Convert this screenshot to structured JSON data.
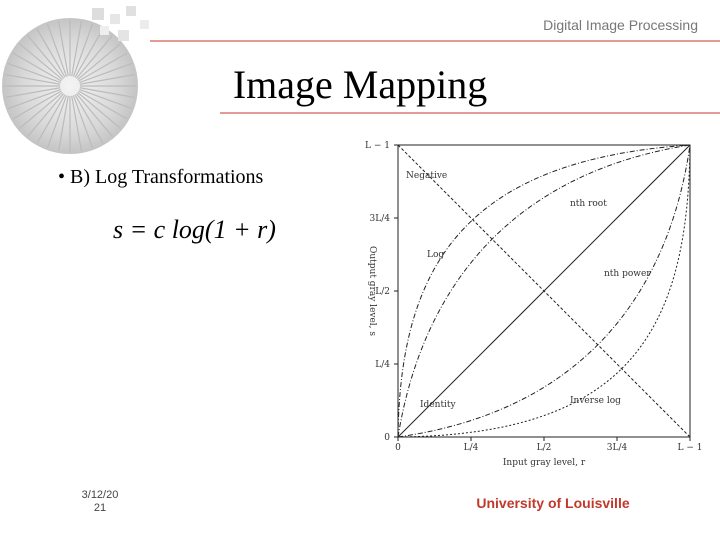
{
  "header": {
    "course": "Digital Image Processing",
    "title": "Image Mapping"
  },
  "body": {
    "bullet": "• B) Log Transformations",
    "formula": "s = c log(1 + r)"
  },
  "figure": {
    "y_label": "Output gray level, s",
    "x_label": "Input gray level, r",
    "y_ticks": [
      "L − 1",
      "3L/4",
      "L/2",
      "L/4",
      "0"
    ],
    "x_ticks": [
      "0",
      "L/4",
      "L/2",
      "3L/4",
      "L − 1"
    ],
    "curve_labels": [
      "Negative",
      "nth root",
      "Log",
      "nth power",
      "Identity",
      "Inverse log"
    ]
  },
  "footer": {
    "date_lines": [
      "3/12/20",
      "21"
    ],
    "institution": "University of Louisville"
  }
}
